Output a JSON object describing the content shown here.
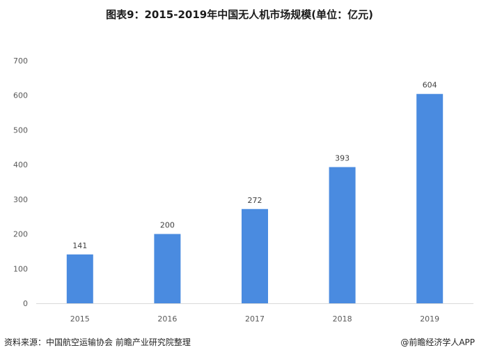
{
  "title": "图表9：2015-2019年中国无人机市场规模(单位：亿元)",
  "source": "资料来源：中国航空运输协会 前瞻产业研究院整理",
  "brand": "@前瞻经济学人APP",
  "colors": {
    "bar": "#4a8be0",
    "axis": "#d9d9d9",
    "background": "#ffffff"
  },
  "chart_data": {
    "type": "bar",
    "title": "图表9：2015-2019年中国无人机市场规模(单位：亿元)",
    "categories": [
      "2015",
      "2016",
      "2017",
      "2018",
      "2019"
    ],
    "values": [
      141,
      200,
      272,
      393,
      604
    ],
    "ylim": [
      0,
      700
    ],
    "yticks": [
      0,
      100,
      200,
      300,
      400,
      500,
      600,
      700
    ],
    "xlabel": "",
    "ylabel": "",
    "grid": false,
    "data_labels": true
  }
}
